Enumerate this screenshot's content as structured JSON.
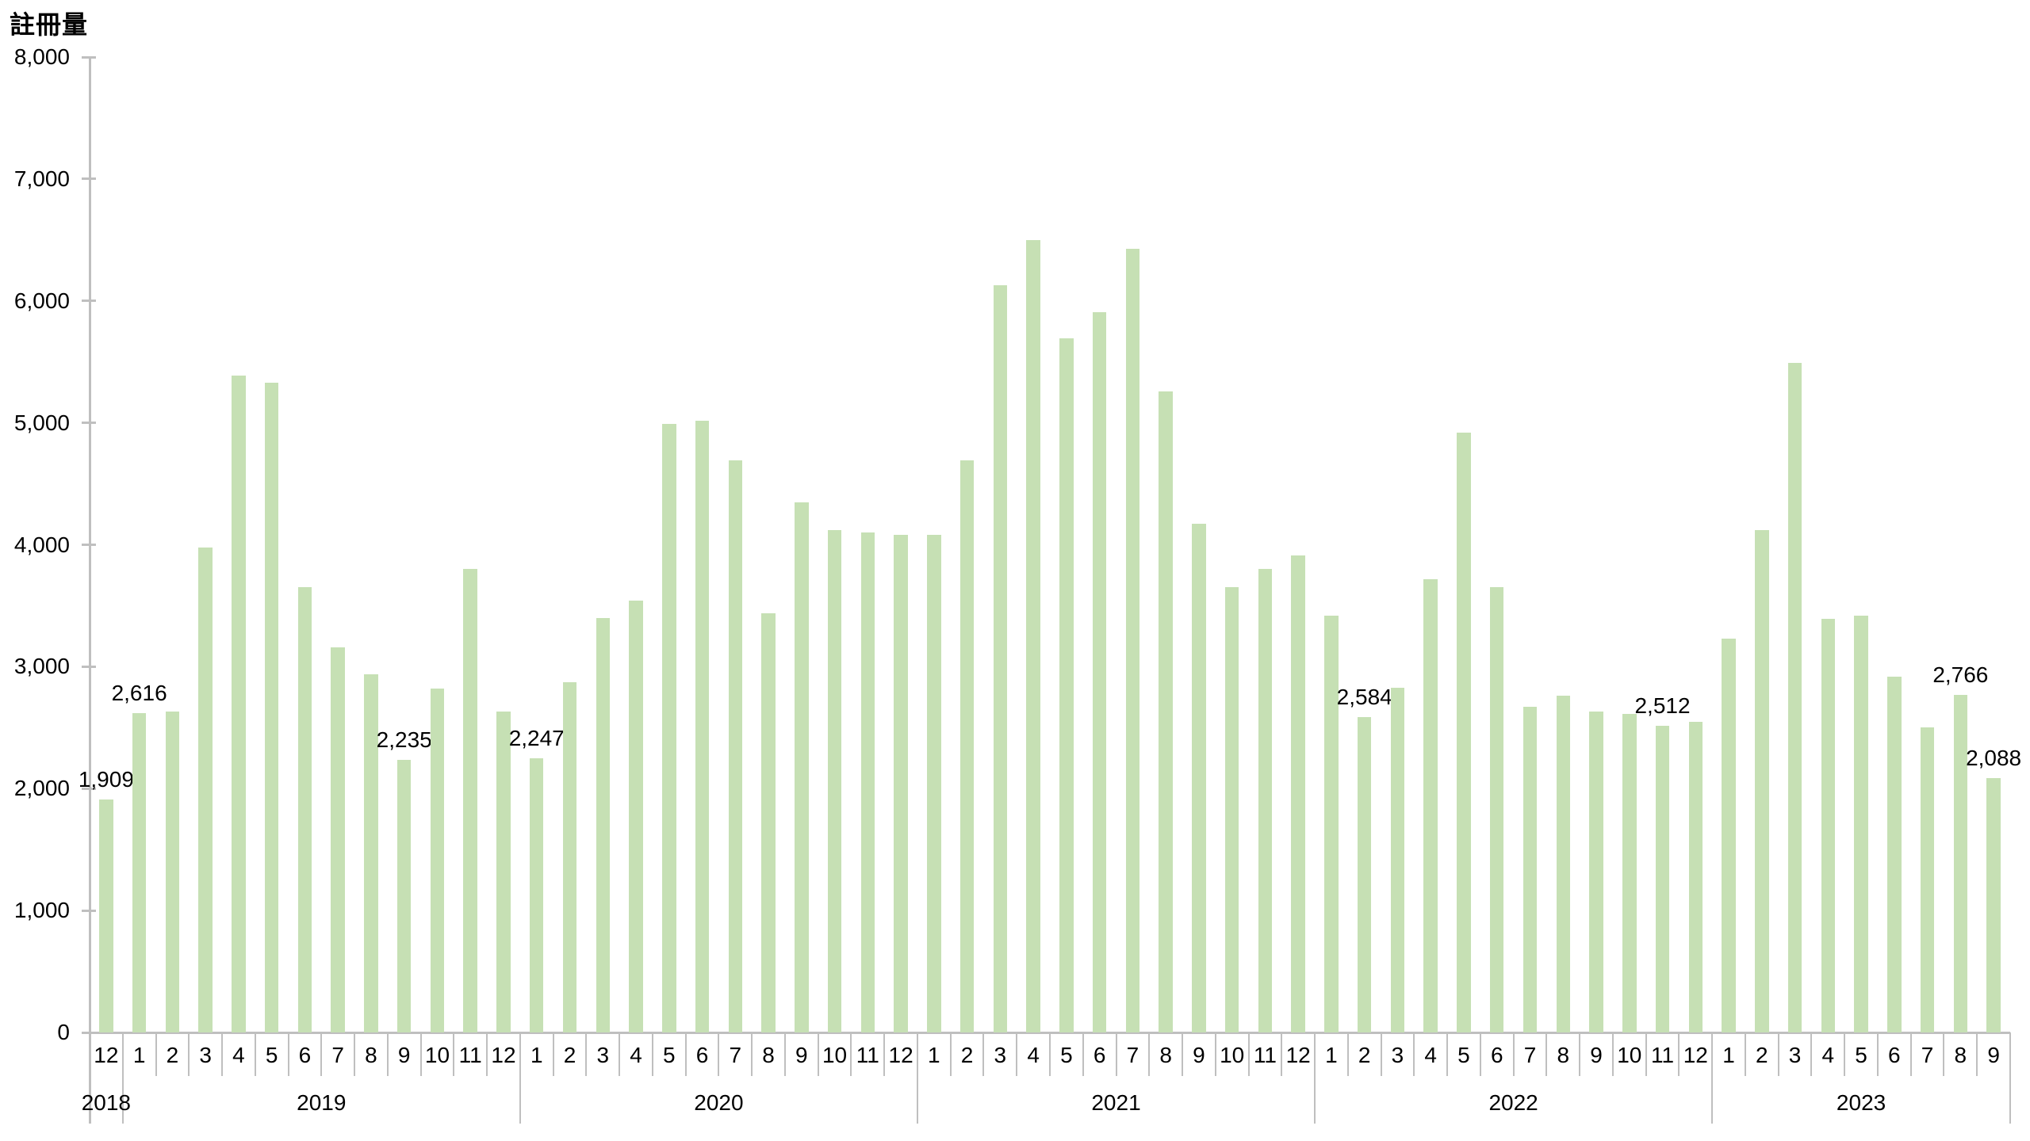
{
  "chart_data": {
    "type": "bar",
    "title": "註冊量",
    "ylabel": "註冊量",
    "ylim": [
      0,
      8000
    ],
    "grid": false,
    "legend": null,
    "bar_color": "#c6e0b4",
    "axis_color": "#bfbfbf",
    "text_color": "#000000",
    "y_axis": {
      "tick_labels": [
        "0",
        "1,000",
        "2,000",
        "3,000",
        "4,000",
        "5,000",
        "6,000",
        "7,000",
        "8,000"
      ]
    },
    "groups": [
      {
        "year": "2018",
        "months": [
          {
            "m": "12",
            "v": 1909,
            "label": "1,909"
          }
        ]
      },
      {
        "year": "2019",
        "months": [
          {
            "m": "1",
            "v": 2616,
            "label": "2,616"
          },
          {
            "m": "2",
            "v": 2630
          },
          {
            "m": "3",
            "v": 3980
          },
          {
            "m": "4",
            "v": 5390
          },
          {
            "m": "5",
            "v": 5330
          },
          {
            "m": "6",
            "v": 3650
          },
          {
            "m": "7",
            "v": 3160
          },
          {
            "m": "8",
            "v": 2940
          },
          {
            "m": "9",
            "v": 2235,
            "label": "2,235"
          },
          {
            "m": "10",
            "v": 2820
          },
          {
            "m": "11",
            "v": 3800
          },
          {
            "m": "12",
            "v": 2630
          }
        ]
      },
      {
        "year": "2020",
        "months": [
          {
            "m": "1",
            "v": 2247,
            "label": "2,247"
          },
          {
            "m": "2",
            "v": 2870
          },
          {
            "m": "3",
            "v": 3400
          },
          {
            "m": "4",
            "v": 3540
          },
          {
            "m": "5",
            "v": 4990
          },
          {
            "m": "6",
            "v": 5020
          },
          {
            "m": "7",
            "v": 4690
          },
          {
            "m": "8",
            "v": 3440
          },
          {
            "m": "9",
            "v": 4350
          },
          {
            "m": "10",
            "v": 4120
          },
          {
            "m": "11",
            "v": 4100
          },
          {
            "m": "12",
            "v": 4080
          }
        ]
      },
      {
        "year": "2021",
        "months": [
          {
            "m": "1",
            "v": 4080
          },
          {
            "m": "2",
            "v": 4690
          },
          {
            "m": "3",
            "v": 6130
          },
          {
            "m": "4",
            "v": 6500
          },
          {
            "m": "5",
            "v": 5690
          },
          {
            "m": "6",
            "v": 5910
          },
          {
            "m": "7",
            "v": 6430
          },
          {
            "m": "8",
            "v": 5260
          },
          {
            "m": "9",
            "v": 4170
          },
          {
            "m": "10",
            "v": 3650
          },
          {
            "m": "11",
            "v": 3800
          },
          {
            "m": "12",
            "v": 3910
          }
        ]
      },
      {
        "year": "2022",
        "months": [
          {
            "m": "1",
            "v": 3420
          },
          {
            "m": "2",
            "v": 2584,
            "label": "2,584"
          },
          {
            "m": "3",
            "v": 2830
          },
          {
            "m": "4",
            "v": 3720
          },
          {
            "m": "5",
            "v": 4920
          },
          {
            "m": "6",
            "v": 3650
          },
          {
            "m": "7",
            "v": 2670
          },
          {
            "m": "8",
            "v": 2760
          },
          {
            "m": "9",
            "v": 2630
          },
          {
            "m": "10",
            "v": 2610
          },
          {
            "m": "11",
            "v": 2512,
            "label": "2,512"
          },
          {
            "m": "12",
            "v": 2550
          }
        ]
      },
      {
        "year": "2023",
        "months": [
          {
            "m": "1",
            "v": 3230
          },
          {
            "m": "2",
            "v": 4120
          },
          {
            "m": "3",
            "v": 5490
          },
          {
            "m": "4",
            "v": 3390
          },
          {
            "m": "5",
            "v": 3420
          },
          {
            "m": "6",
            "v": 2920
          },
          {
            "m": "7",
            "v": 2500
          },
          {
            "m": "8",
            "v": 2766,
            "label": "2,766"
          },
          {
            "m": "9",
            "v": 2088,
            "label": "2,088"
          }
        ]
      }
    ]
  }
}
